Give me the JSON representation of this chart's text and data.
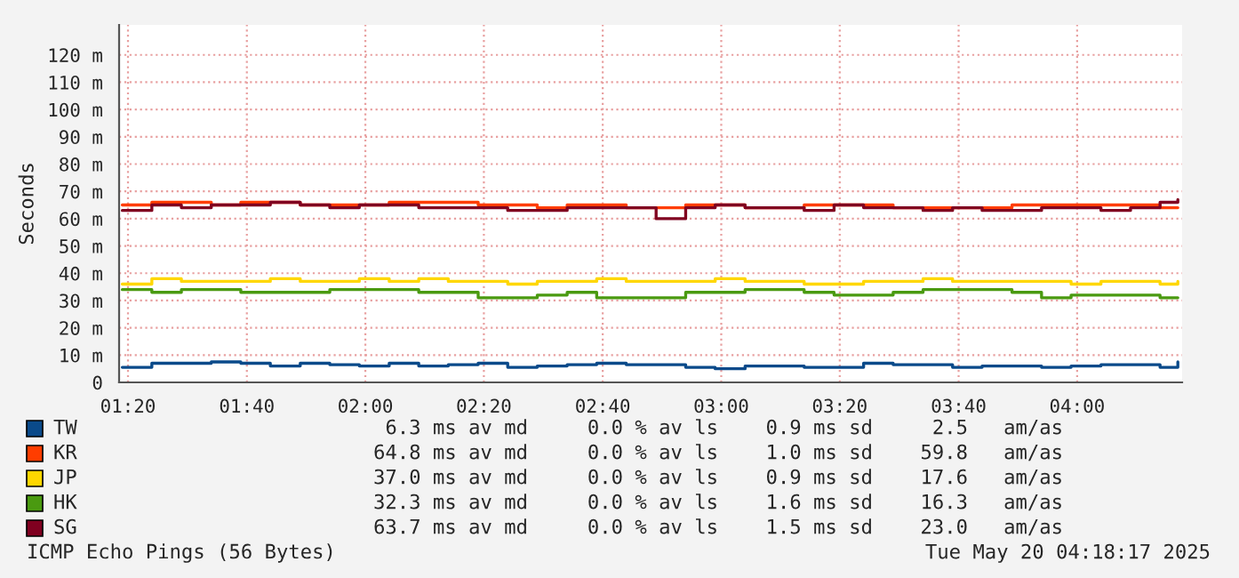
{
  "chart_data": {
    "type": "step",
    "ylabel": "Seconds",
    "x": [
      1.317,
      1.4,
      1.483,
      1.567,
      1.65,
      1.733,
      1.817,
      1.9,
      1.983,
      2.067,
      2.15,
      2.233,
      2.317,
      2.4,
      2.483,
      2.567,
      2.65,
      2.733,
      2.817,
      2.9,
      2.983,
      3.067,
      3.15,
      3.233,
      3.317,
      3.4,
      3.483,
      3.567,
      3.65,
      3.733,
      3.817,
      3.9,
      3.983,
      4.067,
      4.15,
      4.233,
      4.283
    ],
    "series": [
      {
        "name": "TW",
        "color": "#0a4a8a",
        "values": [
          5.5,
          7,
          7,
          7.5,
          7,
          6,
          7,
          6.5,
          6,
          7,
          6,
          6.5,
          7,
          5.5,
          6,
          6.5,
          7,
          6.5,
          6.5,
          5.5,
          5,
          6,
          6,
          5.5,
          5.5,
          7,
          6.5,
          6.5,
          5.5,
          6,
          6,
          5.5,
          6,
          6.5,
          6.5,
          5.5,
          7.5
        ]
      },
      {
        "name": "KR",
        "color": "#ff3d00",
        "values": [
          65,
          66,
          66,
          65,
          66,
          66,
          65,
          65,
          65,
          66,
          66,
          66,
          65,
          65,
          64,
          65,
          65,
          64,
          64,
          65,
          65,
          64,
          64,
          65,
          65,
          65,
          64,
          64,
          64,
          64,
          65,
          65,
          65,
          65,
          65,
          64,
          64
        ]
      },
      {
        "name": "JP",
        "color": "#ffd700",
        "values": [
          36,
          38,
          37,
          37,
          37,
          38,
          37,
          37,
          38,
          37,
          38,
          37,
          37,
          36,
          37,
          37,
          38,
          37,
          37,
          37,
          38,
          37,
          37,
          36,
          36,
          37,
          37,
          38,
          37,
          37,
          37,
          37,
          36,
          37,
          37,
          36,
          37
        ]
      },
      {
        "name": "HK",
        "color": "#4a9a10",
        "values": [
          34,
          33,
          34,
          34,
          33,
          33,
          33,
          34,
          34,
          34,
          33,
          33,
          31,
          31,
          32,
          33,
          31,
          31,
          31,
          33,
          33,
          34,
          34,
          33,
          32,
          32,
          33,
          34,
          34,
          34,
          33,
          31,
          32,
          32,
          32,
          31,
          31
        ]
      },
      {
        "name": "SG",
        "color": "#800020",
        "values": [
          63,
          65,
          64,
          65,
          65,
          66,
          65,
          64,
          65,
          65,
          64,
          64,
          64,
          63,
          63,
          64,
          64,
          64,
          60,
          64,
          65,
          64,
          64,
          63,
          65,
          64,
          64,
          63,
          64,
          63,
          63,
          64,
          64,
          63,
          64,
          66,
          67
        ]
      }
    ],
    "xlim": [
      1.308,
      4.295
    ],
    "xticks": [
      {
        "value": 1.333,
        "label": "01:20"
      },
      {
        "value": 1.667,
        "label": "01:40"
      },
      {
        "value": 2,
        "label": "02:00"
      },
      {
        "value": 2.333,
        "label": "02:20"
      },
      {
        "value": 2.667,
        "label": "02:40"
      },
      {
        "value": 3,
        "label": "03:00"
      },
      {
        "value": 3.333,
        "label": "03:20"
      },
      {
        "value": 3.667,
        "label": "03:40"
      },
      {
        "value": 4,
        "label": "04:00"
      }
    ],
    "ylim": [
      0,
      131
    ],
    "yticks": [
      0,
      {
        "value": 10,
        "label": "10 m"
      },
      {
        "value": 20,
        "label": "20 m"
      },
      {
        "value": 30,
        "label": "30 m"
      },
      {
        "value": 40,
        "label": "40 m"
      },
      {
        "value": 50,
        "label": "50 m"
      },
      {
        "value": 60,
        "label": "60 m"
      },
      {
        "value": 70,
        "label": "70 m"
      },
      {
        "value": 80,
        "label": "80 m"
      },
      {
        "value": 90,
        "label": "90 m"
      },
      {
        "value": 100,
        "label": "100 m"
      },
      {
        "value": 110,
        "label": "110 m"
      },
      {
        "value": 120,
        "label": "120 m"
      }
    ],
    "grid": true,
    "legend": "bottom",
    "line_style": "solid",
    "annotations": [
      "6.3 ms av md     0.0 % av ls    0.9 ms sd     2.5   am/as",
      "64.8 ms av md     0.0 % av ls    1.0 ms sd    59.8   am/as",
      "37.0 ms av md     0.0 % av ls    0.9 ms sd    17.6   am/as",
      "32.3 ms av md     0.0 % av ls    1.6 ms sd    16.3   am/as",
      "63.7 ms av md     0.0 % av ls    1.5 ms sd    23.0   am/as",
      "ICMP Echo Pings (56 Bytes)",
      "Tue May 20 04:18:17 2025"
    ]
  }
}
